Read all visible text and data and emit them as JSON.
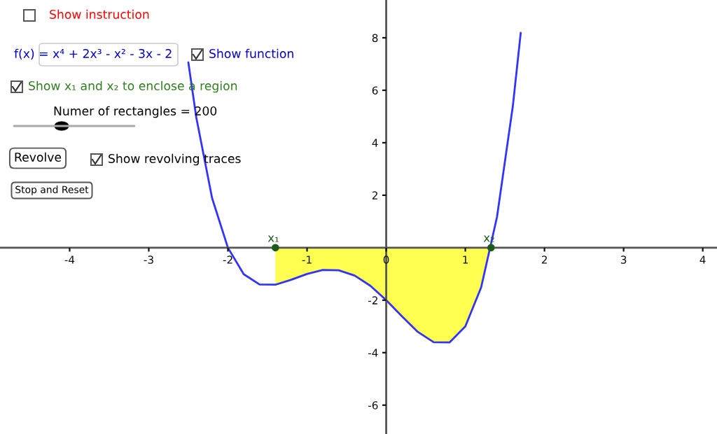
{
  "chart_data": {
    "type": "line",
    "xlim": [
      -4.88,
      4.18
    ],
    "ylim": [
      -7.1,
      9.44
    ],
    "xticks": [
      -4,
      -3,
      -2,
      -1,
      0,
      1,
      2,
      3,
      4
    ],
    "yticks": [
      -6,
      -4,
      -2,
      2,
      4,
      6,
      8
    ],
    "grid": false,
    "legend": false,
    "series": [
      {
        "type": "area",
        "color": "#ffff33",
        "x": [
          -1.4,
          -1.2,
          -1.0,
          -0.8,
          -0.6,
          -0.4,
          -0.2,
          0,
          0.2,
          0.4,
          0.6,
          0.8,
          1.0,
          1.2,
          1.325
        ],
        "values": [
          -1.41,
          -1.22,
          -1.0,
          -0.85,
          -0.86,
          -1.06,
          -1.45,
          -2.0,
          -2.62,
          -3.21,
          -3.6,
          -3.61,
          -3.0,
          -1.51,
          0
        ]
      },
      {
        "color": "#3333ff",
        "x": [
          -2.5,
          -2.4,
          -2.2,
          -2.0,
          -1.8,
          -1.6,
          -1.4,
          -1.2,
          -1.0,
          -0.8,
          -0.6,
          -0.4,
          -0.2,
          0,
          0.2,
          0.4,
          0.6,
          0.8,
          1.0,
          1.2,
          1.4,
          1.6,
          1.7
        ],
        "values": [
          7.06,
          4.97,
          1.89,
          0,
          -1.01,
          -1.4,
          -1.41,
          -1.22,
          -1.0,
          -0.85,
          -0.86,
          -1.06,
          -1.45,
          -2.0,
          -2.62,
          -3.21,
          -3.6,
          -3.61,
          -3.0,
          -1.51,
          1.17,
          5.39,
          8.19
        ]
      },
      {
        "type": "scatter",
        "color": "#1e5a1e",
        "marker": "circle",
        "x": [
          -1.4,
          1.325
        ],
        "values": [
          0,
          0
        ]
      }
    ],
    "annotations": [
      {
        "text": "x₁",
        "x": -1.4,
        "y": 0
      },
      {
        "text": "x₂",
        "x": 1.325,
        "y": 0
      },
      "Show instruction",
      "f(x) = x⁴ + 2x³ - x² - 3x - 2",
      "Show function",
      "Show x₁ and x₂ to enclose a region",
      "Numer of rectangles = 200",
      "Revolve",
      "Show revolving traces",
      "Stop and Reset"
    ]
  }
}
